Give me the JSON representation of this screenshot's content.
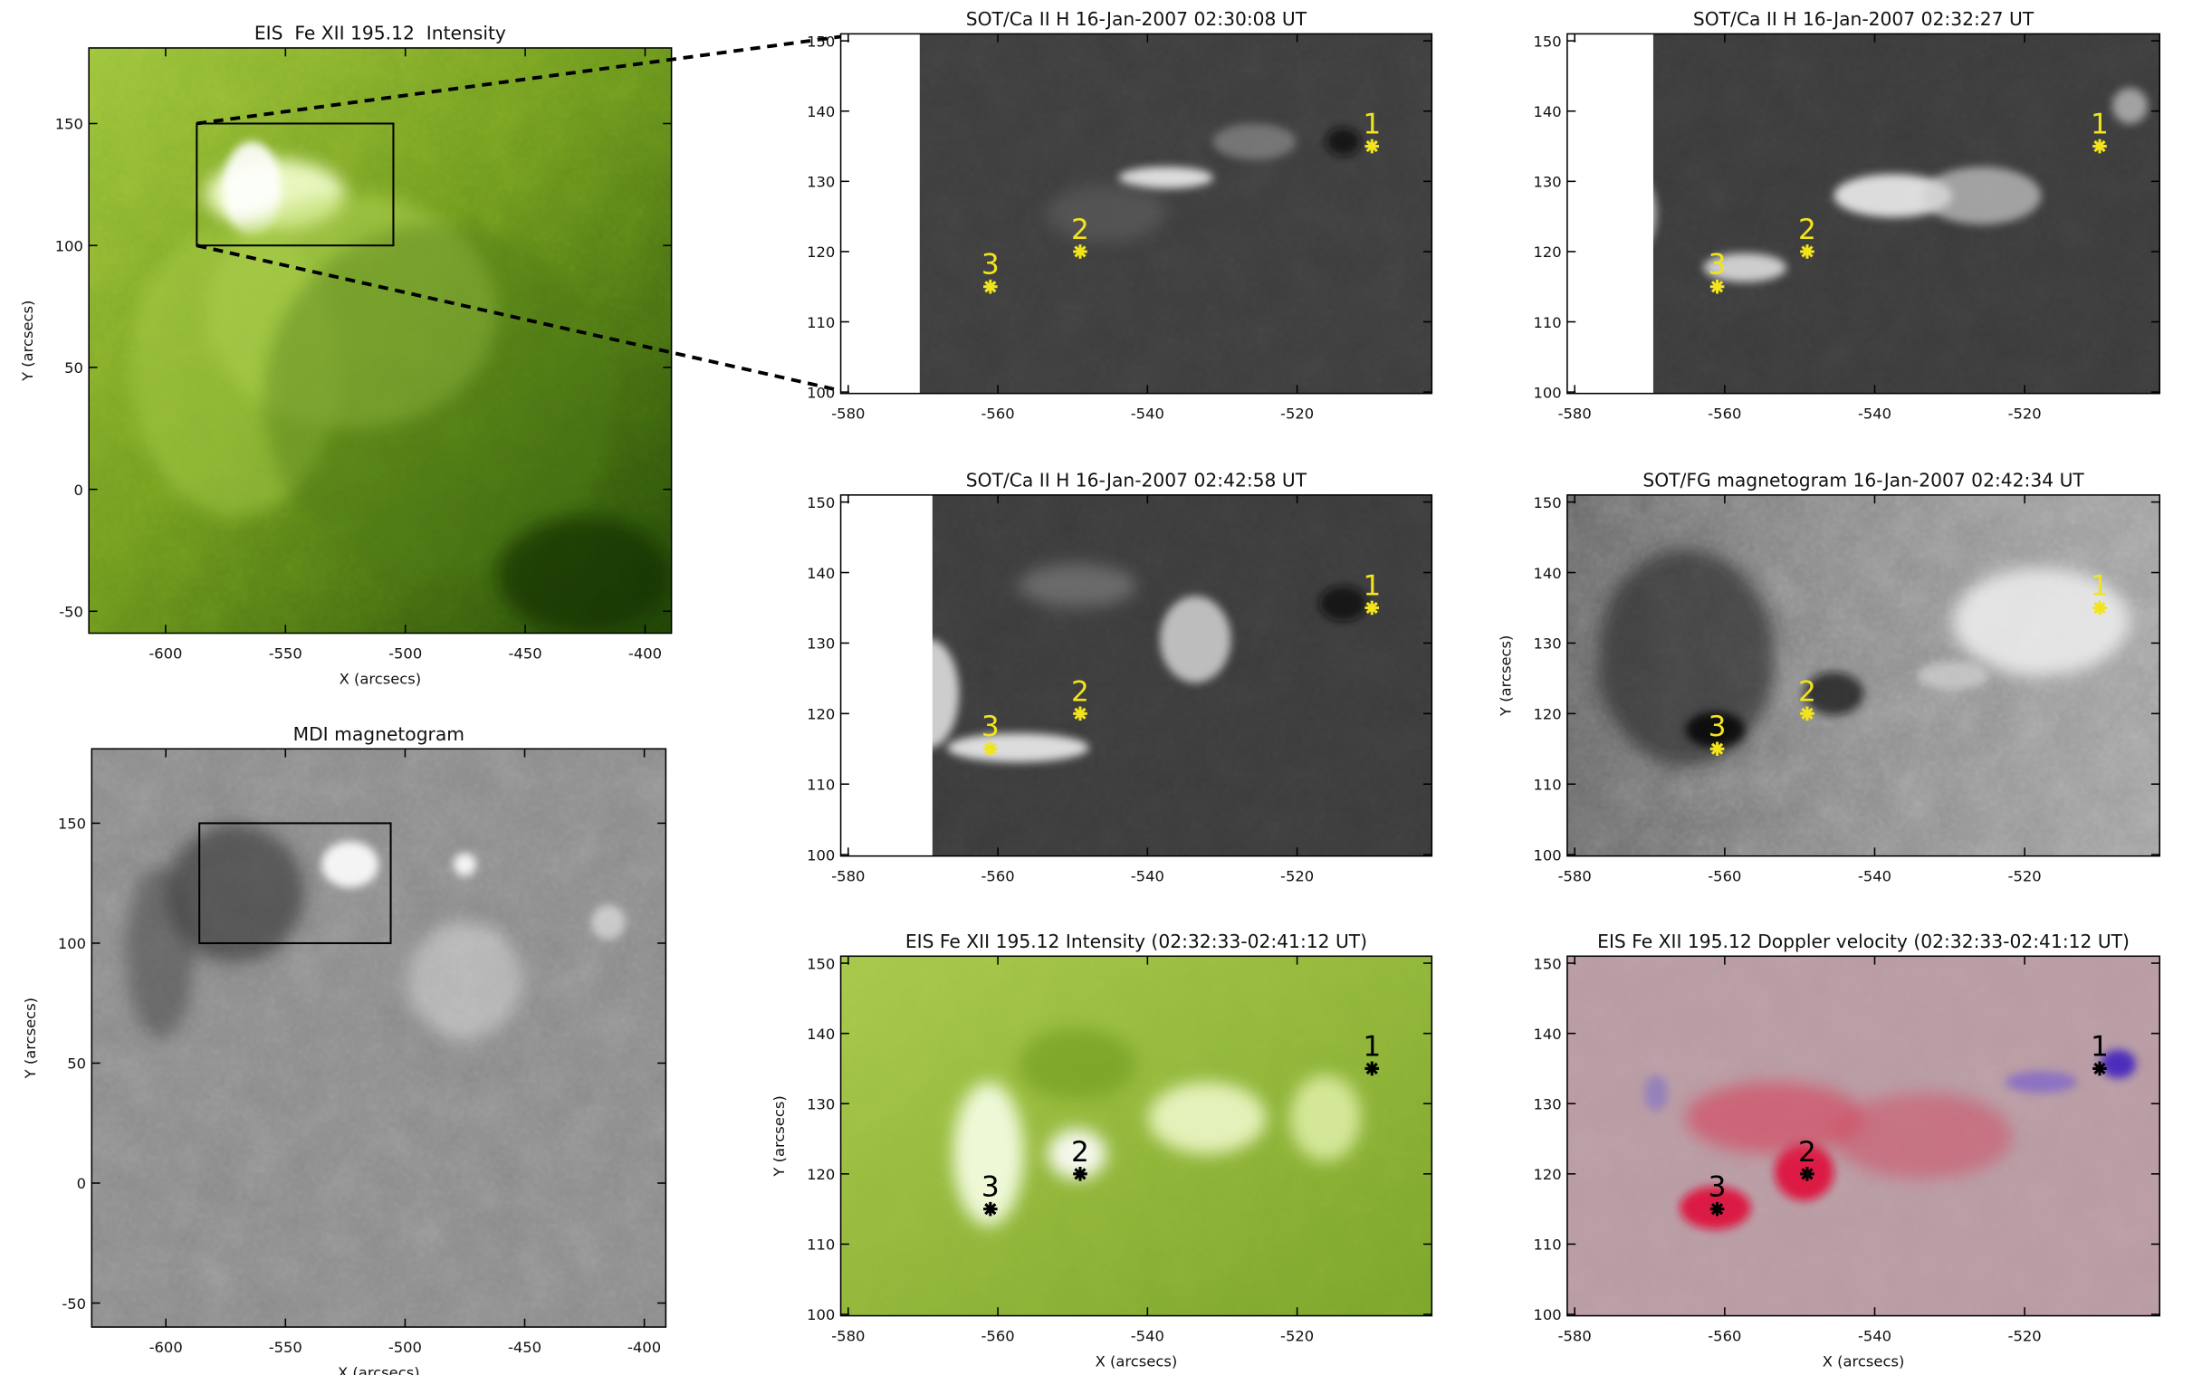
{
  "panels": [
    {
      "title": "EIS  Fe XII 195.12  Intensity",
      "xlabel": "X (arcsecs)",
      "ylabel": "Y (arcsecs)",
      "xlim": [
        -632,
        -389
      ],
      "ylim": [
        -59,
        181
      ],
      "xticks": [
        -600,
        -550,
        -500,
        -450,
        -400
      ],
      "yticks": [
        -50,
        0,
        50,
        100,
        150
      ],
      "box": {
        "x": [
          -587,
          -505
        ],
        "y": [
          100,
          150
        ]
      }
    },
    {
      "title": "MDI magnetogram",
      "xlabel": "X (arcsecs)",
      "ylabel": "Y (arcsecs)",
      "xlim": [
        -631,
        -391
      ],
      "ylim": [
        -60,
        181
      ],
      "xticks": [
        -600,
        -550,
        -500,
        -450,
        -400
      ],
      "yticks": [
        -50,
        0,
        50,
        100,
        150
      ],
      "box": {
        "x": [
          -586,
          -506
        ],
        "y": [
          100,
          150
        ]
      }
    },
    {
      "title": "SOT/Ca II H 16-Jan-2007 02:30:08 UT",
      "xlim": [
        -581,
        -502
      ],
      "ylim": [
        99.8,
        151
      ],
      "xticks": [
        -580,
        -560,
        -540,
        -520
      ],
      "yticks": [
        100,
        110,
        120,
        130,
        140,
        150
      ],
      "markers": [
        {
          "label": "1",
          "x": -510,
          "y": 135
        },
        {
          "label": "2",
          "x": -549,
          "y": 120
        },
        {
          "label": "3",
          "x": -561,
          "y": 115
        }
      ]
    },
    {
      "title": "SOT/Ca II H 16-Jan-2007 02:32:27 UT",
      "xlim": [
        -581,
        -502
      ],
      "ylim": [
        99.8,
        151
      ],
      "xticks": [
        -580,
        -560,
        -540,
        -520
      ],
      "yticks": [
        100,
        110,
        120,
        130,
        140,
        150
      ],
      "markers": [
        {
          "label": "1",
          "x": -510,
          "y": 135
        },
        {
          "label": "2",
          "x": -549,
          "y": 120
        },
        {
          "label": "3",
          "x": -561,
          "y": 115
        }
      ]
    },
    {
      "title": "SOT/Ca II H 16-Jan-2007 02:42:58 UT",
      "xlim": [
        -581,
        -502
      ],
      "ylim": [
        99.8,
        151
      ],
      "xticks": [
        -580,
        -560,
        -540,
        -520
      ],
      "yticks": [
        100,
        110,
        120,
        130,
        140,
        150
      ],
      "markers": [
        {
          "label": "1",
          "x": -510,
          "y": 135
        },
        {
          "label": "2",
          "x": -549,
          "y": 120
        },
        {
          "label": "3",
          "x": -561,
          "y": 115
        }
      ]
    },
    {
      "title": "SOT/FG magnetogram 16-Jan-2007 02:42:34 UT",
      "ylabel": "Y (arcsecs)",
      "xlim": [
        -581,
        -502
      ],
      "ylim": [
        99.8,
        151
      ],
      "xticks": [
        -580,
        -560,
        -540,
        -520
      ],
      "yticks": [
        100,
        110,
        120,
        130,
        140,
        150
      ],
      "markers": [
        {
          "label": "1",
          "x": -510,
          "y": 135
        },
        {
          "label": "2",
          "x": -549,
          "y": 120
        },
        {
          "label": "3",
          "x": -561,
          "y": 115
        }
      ]
    },
    {
      "title": "EIS Fe XII 195.12 Intensity (02:32:33-02:41:12 UT)",
      "xlabel": "X (arcsecs)",
      "ylabel": "Y (arcsecs)",
      "xlim": [
        -581,
        -502
      ],
      "ylim": [
        99.8,
        151
      ],
      "xticks": [
        -580,
        -560,
        -540,
        -520
      ],
      "yticks": [
        100,
        110,
        120,
        130,
        140,
        150
      ],
      "markers": [
        {
          "label": "1",
          "x": -510,
          "y": 135
        },
        {
          "label": "2",
          "x": -549,
          "y": 120
        },
        {
          "label": "3",
          "x": -561,
          "y": 115
        }
      ]
    },
    {
      "title": "EIS Fe XII 195.12 Doppler velocity (02:32:33-02:41:12 UT)",
      "xlabel": "X (arcsecs)",
      "xlim": [
        -581,
        -502
      ],
      "ylim": [
        99.8,
        151
      ],
      "xticks": [
        -580,
        -560,
        -540,
        -520
      ],
      "yticks": [
        100,
        110,
        120,
        130,
        140,
        150
      ],
      "markers": [
        {
          "label": "1",
          "x": -510,
          "y": 135
        },
        {
          "label": "2",
          "x": -549,
          "y": 120
        },
        {
          "label": "3",
          "x": -561,
          "y": 115
        }
      ]
    }
  ]
}
